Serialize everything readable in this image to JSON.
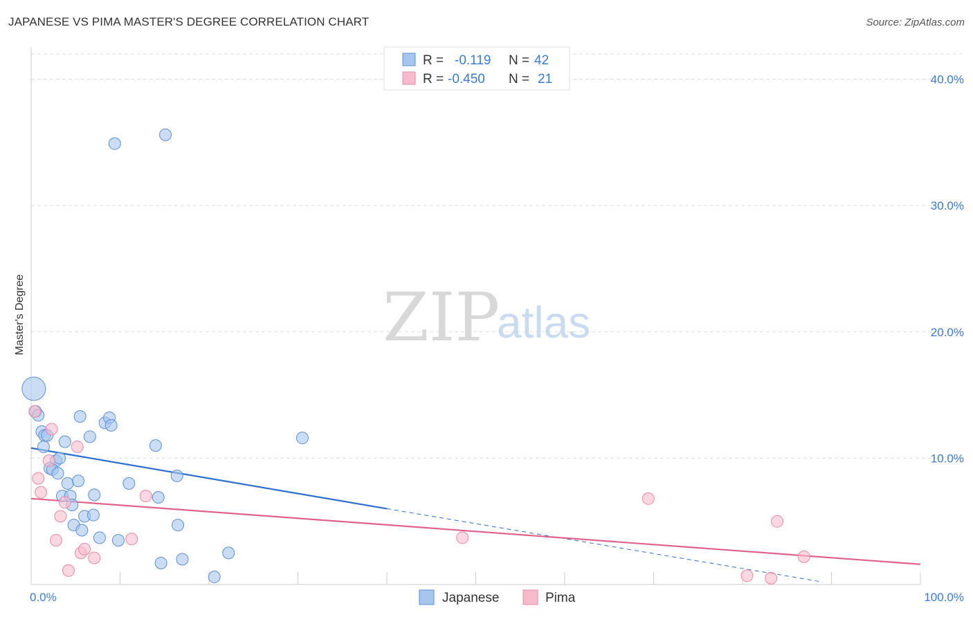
{
  "title": "JAPANESE VS PIMA MASTER'S DEGREE CORRELATION CHART",
  "source": "Source: ZipAtlas.com",
  "colors": {
    "japanese_fill": "#a7c6ee",
    "japanese_stroke": "#5b8fd6",
    "japanese_line": "#2b6fd1",
    "pima_fill": "#f6bccd",
    "pima_stroke": "#e98aa6",
    "pima_line": "#e0628a",
    "tick_text": "#3a7bd5",
    "grid": "#dddddd"
  },
  "chart_data": {
    "type": "scatter",
    "title": "JAPANESE VS PIMA MASTER'S DEGREE CORRELATION CHART",
    "xlabel": "",
    "ylabel": "Master's Degree",
    "xlim": [
      0,
      100
    ],
    "ylim": [
      0,
      42
    ],
    "x_tick_labels": [
      "0.0%",
      "100.0%"
    ],
    "y_ticks": [
      10,
      20,
      30,
      40
    ],
    "y_tick_labels": [
      "10.0%",
      "20.0%",
      "30.0%",
      "40.0%"
    ],
    "grid": true,
    "legend_position": "bottom-center",
    "stats_box": {
      "rows": [
        {
          "series": "Japanese",
          "r_label": "R =",
          "r_value": "-0.119",
          "n_label": "N =",
          "n_value": "42"
        },
        {
          "series": "Pima",
          "r_label": "R =",
          "r_value": "-0.450",
          "n_label": "N =",
          "n_value": "21"
        }
      ]
    },
    "series": [
      {
        "name": "Japanese",
        "points": [
          {
            "x": 0.3,
            "y": 15.5,
            "size": "large"
          },
          {
            "x": 0.5,
            "y": 13.7
          },
          {
            "x": 0.8,
            "y": 13.4
          },
          {
            "x": 1.2,
            "y": 12.1
          },
          {
            "x": 1.5,
            "y": 11.8
          },
          {
            "x": 1.8,
            "y": 11.8
          },
          {
            "x": 1.4,
            "y": 10.9
          },
          {
            "x": 3.8,
            "y": 11.3
          },
          {
            "x": 2.8,
            "y": 9.8
          },
          {
            "x": 3.2,
            "y": 10.0
          },
          {
            "x": 2.1,
            "y": 9.2
          },
          {
            "x": 2.4,
            "y": 9.1
          },
          {
            "x": 3.0,
            "y": 8.8
          },
          {
            "x": 4.1,
            "y": 8.0
          },
          {
            "x": 5.3,
            "y": 8.2
          },
          {
            "x": 3.5,
            "y": 7.0
          },
          {
            "x": 4.4,
            "y": 7.0
          },
          {
            "x": 4.6,
            "y": 6.3
          },
          {
            "x": 4.8,
            "y": 4.7
          },
          {
            "x": 5.7,
            "y": 4.3
          },
          {
            "x": 6.0,
            "y": 5.4
          },
          {
            "x": 7.0,
            "y": 5.5
          },
          {
            "x": 7.1,
            "y": 7.1
          },
          {
            "x": 5.5,
            "y": 13.3
          },
          {
            "x": 6.6,
            "y": 11.7
          },
          {
            "x": 8.3,
            "y": 12.8
          },
          {
            "x": 8.8,
            "y": 13.2
          },
          {
            "x": 9.0,
            "y": 12.6
          },
          {
            "x": 7.7,
            "y": 3.7
          },
          {
            "x": 9.8,
            "y": 3.5
          },
          {
            "x": 11.0,
            "y": 8.0
          },
          {
            "x": 14.0,
            "y": 11.0
          },
          {
            "x": 14.3,
            "y": 6.9
          },
          {
            "x": 16.4,
            "y": 8.6
          },
          {
            "x": 16.5,
            "y": 4.7
          },
          {
            "x": 14.6,
            "y": 1.7
          },
          {
            "x": 17.0,
            "y": 2.0
          },
          {
            "x": 20.6,
            "y": 0.6
          },
          {
            "x": 22.2,
            "y": 2.5
          },
          {
            "x": 30.5,
            "y": 11.6
          },
          {
            "x": 9.4,
            "y": 34.9
          },
          {
            "x": 15.1,
            "y": 35.6
          }
        ],
        "trend": {
          "x_start": 0,
          "y_start": 10.8,
          "x_solid_end": 40,
          "y_solid_end": 6.0,
          "x_dash_end": 89,
          "y_dash_end": 0.2
        }
      },
      {
        "name": "Pima",
        "points": [
          {
            "x": 0.4,
            "y": 13.7
          },
          {
            "x": 2.3,
            "y": 12.3
          },
          {
            "x": 2.0,
            "y": 9.8
          },
          {
            "x": 0.8,
            "y": 8.4
          },
          {
            "x": 1.1,
            "y": 7.3
          },
          {
            "x": 5.2,
            "y": 10.9
          },
          {
            "x": 3.8,
            "y": 6.5
          },
          {
            "x": 3.3,
            "y": 5.4
          },
          {
            "x": 2.8,
            "y": 3.5
          },
          {
            "x": 4.2,
            "y": 1.1
          },
          {
            "x": 5.6,
            "y": 2.5
          },
          {
            "x": 6.0,
            "y": 2.8
          },
          {
            "x": 7.1,
            "y": 2.1
          },
          {
            "x": 11.3,
            "y": 3.6
          },
          {
            "x": 12.9,
            "y": 7.0
          },
          {
            "x": 48.5,
            "y": 3.7
          },
          {
            "x": 69.4,
            "y": 6.8
          },
          {
            "x": 80.5,
            "y": 0.7
          },
          {
            "x": 83.2,
            "y": 0.5
          },
          {
            "x": 83.9,
            "y": 5.0
          },
          {
            "x": 86.9,
            "y": 2.2
          }
        ],
        "trend": {
          "x_start": 0,
          "y_start": 6.8,
          "x_end": 100,
          "y_end": 1.6
        }
      }
    ]
  },
  "watermark": {
    "part1": "ZIP",
    "part2": "atlas"
  }
}
